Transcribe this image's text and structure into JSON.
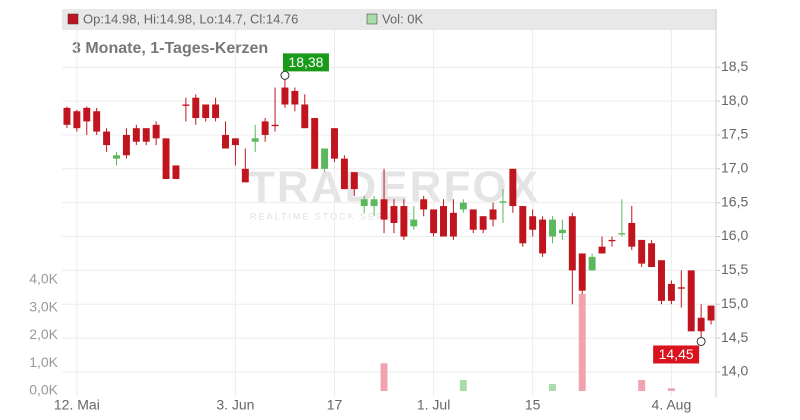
{
  "chart_data": {
    "type": "candlestick",
    "legend": {
      "ohlc": "Op:14.98, Hi:14.98, Lo:14.7, Cl:14.76",
      "volume": "Vol: 0K"
    },
    "subtitle": "3 Monate, 1-Tages-Kerzen",
    "watermark": [
      "TRADERFOX",
      "REALTIME STOCK SERVICE"
    ],
    "up_color": "#5cb85c",
    "down_color": "#c0141e",
    "volume_up_color": "#a8dca8",
    "volume_down_color": "#f0a3ae",
    "categories": [
      null,
      "12. Mai",
      null,
      null,
      null,
      null,
      null,
      null,
      null,
      null,
      null,
      null,
      null,
      null,
      null,
      null,
      null,
      "3. Jun",
      null,
      null,
      null,
      null,
      null,
      null,
      null,
      null,
      null,
      "17",
      null,
      null,
      null,
      null,
      null,
      null,
      null,
      null,
      null,
      "1. Jul",
      null,
      null,
      null,
      null,
      null,
      null,
      null,
      null,
      null,
      "15",
      null,
      null,
      null,
      null,
      null,
      null,
      null,
      null,
      null,
      null,
      null,
      null,
      null,
      "4. Aug",
      null,
      null,
      null,
      null
    ],
    "open": [
      17.9,
      17.85,
      17.9,
      17.85,
      17.55,
      17.15,
      17.5,
      17.6,
      17.6,
      17.65,
      17.45,
      17.05,
      17.95,
      18.05,
      17.95,
      17.95,
      17.5,
      17.45,
      17.0,
      17.4,
      17.7,
      17.65,
      18.2,
      18.15,
      17.95,
      17.75,
      17.0,
      17.6,
      17.15,
      16.95,
      16.45,
      16.45,
      16.55,
      16.45,
      16.45,
      16.15,
      16.55,
      16.4,
      16.45,
      16.35,
      16.4,
      16.4,
      16.3,
      16.4,
      16.5,
      17.0,
      16.45,
      16.3,
      16.25,
      16.0,
      16.05,
      16.3,
      15.75,
      15.5,
      15.85,
      15.95,
      16.03,
      16.2,
      15.95,
      15.9,
      15.65,
      15.3,
      15.25,
      15.5,
      14.8,
      14.98
    ],
    "high": [
      17.92,
      17.87,
      17.92,
      17.9,
      17.6,
      17.25,
      17.6,
      17.65,
      17.6,
      17.7,
      17.45,
      17.05,
      18.05,
      18.1,
      17.95,
      18.05,
      17.7,
      17.45,
      17.3,
      17.65,
      17.75,
      18.2,
      18.38,
      18.2,
      18.1,
      17.75,
      17.3,
      17.6,
      17.2,
      16.95,
      16.6,
      16.6,
      17.0,
      16.55,
      16.55,
      16.45,
      16.6,
      16.4,
      16.55,
      16.55,
      16.55,
      16.4,
      16.3,
      16.5,
      16.7,
      17.0,
      16.45,
      16.4,
      16.3,
      16.3,
      16.25,
      16.35,
      15.75,
      15.75,
      16.0,
      16.0,
      16.55,
      16.45,
      15.95,
      15.95,
      15.65,
      15.35,
      15.5,
      15.5,
      15.0,
      14.98
    ],
    "low": [
      17.6,
      17.55,
      17.5,
      17.5,
      17.25,
      17.05,
      17.15,
      17.35,
      17.35,
      17.35,
      16.85,
      16.85,
      17.7,
      17.65,
      17.7,
      17.7,
      17.3,
      17.05,
      16.8,
      17.25,
      17.4,
      17.55,
      17.9,
      17.85,
      17.6,
      17.0,
      16.95,
      17.1,
      16.7,
      16.6,
      16.35,
      16.3,
      16.05,
      16.05,
      15.95,
      16.1,
      16.3,
      16.0,
      16.0,
      15.95,
      16.35,
      16.05,
      16.05,
      16.15,
      16.2,
      16.35,
      15.85,
      16.0,
      15.7,
      15.9,
      15.95,
      15.0,
      15.15,
      15.5,
      15.75,
      15.85,
      16.0,
      15.8,
      15.55,
      15.55,
      15.0,
      15.0,
      14.95,
      14.6,
      14.45,
      14.7
    ],
    "close": [
      17.65,
      17.6,
      17.7,
      17.55,
      17.35,
      17.2,
      17.2,
      17.4,
      17.4,
      17.45,
      16.85,
      16.85,
      17.93,
      17.75,
      17.75,
      17.75,
      17.3,
      17.35,
      16.8,
      17.45,
      17.5,
      17.63,
      17.95,
      17.95,
      17.6,
      17.0,
      17.3,
      17.15,
      16.7,
      16.7,
      16.55,
      16.55,
      16.25,
      16.2,
      16.0,
      16.25,
      16.4,
      16.05,
      16.0,
      16.0,
      16.5,
      16.1,
      16.1,
      16.25,
      16.52,
      16.45,
      15.9,
      16.1,
      15.75,
      16.25,
      16.1,
      15.5,
      15.2,
      15.7,
      15.75,
      15.93,
      16.05,
      15.85,
      15.6,
      15.55,
      15.05,
      15.05,
      15.23,
      14.6,
      14.6,
      14.76
    ],
    "volume": [
      0,
      0,
      0,
      0,
      0,
      0,
      0,
      0,
      0,
      0,
      0,
      0,
      0,
      0,
      0,
      0,
      0,
      0,
      0,
      0,
      0,
      0,
      0,
      0,
      0,
      0,
      0,
      0,
      0,
      0,
      0,
      0,
      1000,
      0,
      0,
      0,
      0,
      0,
      0,
      0,
      400,
      0,
      0,
      0,
      0,
      0,
      0,
      0,
      0,
      250,
      0,
      0,
      3500,
      0,
      0,
      0,
      0,
      0,
      400,
      0,
      0,
      100,
      0,
      0,
      0,
      0
    ],
    "ylim": [
      13.63,
      19.05
    ],
    "yticks": [
      {
        "value": 14,
        "label": "14,0"
      },
      {
        "value": 14.5,
        "label": "14,5"
      },
      {
        "value": 15,
        "label": "15,0"
      },
      {
        "value": 15.5,
        "label": "15,5"
      },
      {
        "value": 16,
        "label": "16,0"
      },
      {
        "value": 16.5,
        "label": "16,5"
      },
      {
        "value": 17,
        "label": "17,0"
      },
      {
        "value": 17.5,
        "label": "17,5"
      },
      {
        "value": 18,
        "label": "18,0"
      },
      {
        "value": 18.5,
        "label": "18,5"
      }
    ],
    "volume_ylim": [
      -216,
      13009
    ],
    "volume_ticks": [
      {
        "value": 0,
        "label": "0,0K"
      },
      {
        "value": 1000,
        "label": "1,0K"
      },
      {
        "value": 2000,
        "label": "2,0K"
      },
      {
        "value": 3000,
        "label": "3,0K"
      },
      {
        "value": 4000,
        "label": "4,0K"
      }
    ],
    "annotations": [
      {
        "text": "18,38",
        "value": 18.38,
        "field": "high",
        "color": "#1a9a1a"
      },
      {
        "text": "14,45",
        "value": 14.45,
        "field": "low",
        "color": "#d9141e"
      }
    ],
    "grid": true
  }
}
